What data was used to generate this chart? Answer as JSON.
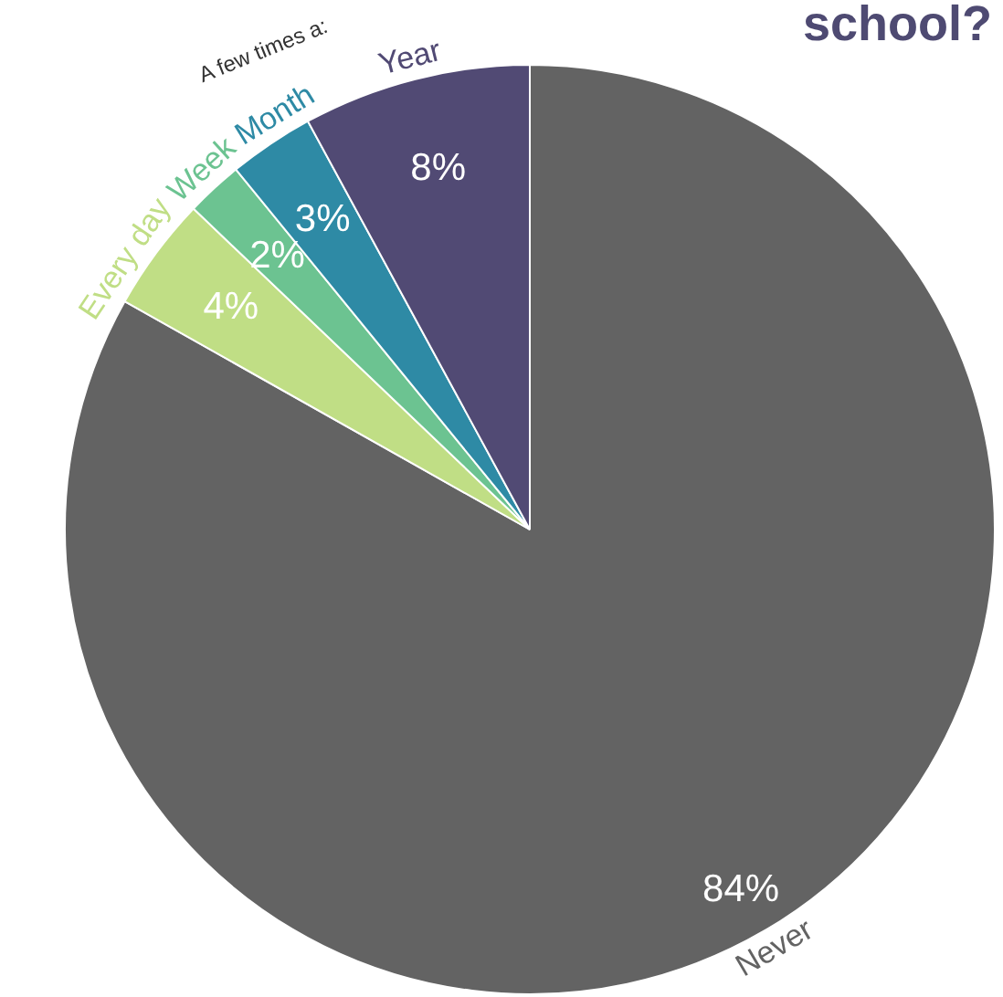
{
  "chart_data": {
    "type": "pie",
    "title": "school?",
    "categories": [
      "Never",
      "Every day",
      "Week",
      "Month",
      "Year"
    ],
    "values": [
      84,
      4,
      2,
      3,
      8
    ],
    "colors": [
      "#636363",
      "#c0de85",
      "#6cc391",
      "#2e8aa5",
      "#514a74"
    ],
    "data_labels": true,
    "value_labels": [
      "84%",
      "4%",
      "2%",
      "3%",
      "8%"
    ],
    "legend": false,
    "annotations": [
      "A few times a:"
    ]
  }
}
